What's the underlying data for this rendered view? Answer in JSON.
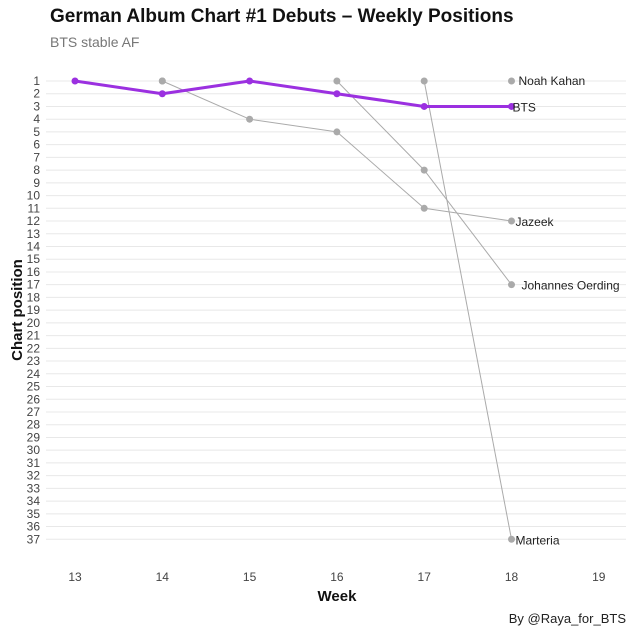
{
  "chart_data": {
    "type": "line",
    "title": "German Album Chart #1 Debuts – Weekly Positions",
    "subtitle": "BTS stable AF",
    "caption": "By @Raya_for_BTS",
    "xlabel": "Week",
    "ylabel": "Chart position",
    "x_ticks": [
      13,
      14,
      15,
      16,
      17,
      18,
      19
    ],
    "y_ticks": [
      1,
      2,
      3,
      4,
      5,
      6,
      7,
      8,
      9,
      10,
      11,
      12,
      13,
      14,
      15,
      16,
      17,
      18,
      19,
      20,
      21,
      22,
      23,
      24,
      25,
      26,
      27,
      28,
      29,
      30,
      31,
      32,
      33,
      34,
      35,
      36,
      37
    ],
    "xlim": [
      13,
      19
    ],
    "ylim": [
      37,
      1
    ],
    "y_reversed": true,
    "grid": true,
    "series": [
      {
        "name": "Noah Kahan",
        "color": "#aaaaaa",
        "highlight": false,
        "points": [
          [
            14,
            1
          ]
        ],
        "end_label": "Noah Kahan"
      },
      {
        "name": "Jazeek",
        "color": "#aaaaaa",
        "highlight": false,
        "points": [
          [
            14,
            1
          ],
          [
            15,
            4
          ],
          [
            16,
            5
          ],
          [
            17,
            11
          ],
          [
            18,
            12
          ]
        ],
        "end_label": "Jazeek"
      },
      {
        "name": "Johannes Oerding",
        "color": "#aaaaaa",
        "highlight": false,
        "points": [
          [
            16,
            1
          ],
          [
            17,
            8
          ],
          [
            18,
            17
          ]
        ],
        "end_label": "Johannes Oerding"
      },
      {
        "name": "Marteria",
        "color": "#aaaaaa",
        "highlight": false,
        "points": [
          [
            17,
            1
          ],
          [
            18,
            37
          ]
        ],
        "end_label": "Marteria"
      },
      {
        "name": "Noah Kahan",
        "color": "#aaaaaa",
        "highlight": false,
        "points": [
          [
            18,
            1
          ]
        ],
        "end_label": ""
      },
      {
        "name": "BTS",
        "color": "#9b30e0",
        "highlight": true,
        "points": [
          [
            13,
            1
          ],
          [
            14,
            2
          ],
          [
            15,
            1
          ],
          [
            16,
            2
          ],
          [
            17,
            3
          ],
          [
            18,
            3
          ]
        ],
        "end_label": "BTS"
      }
    ]
  }
}
